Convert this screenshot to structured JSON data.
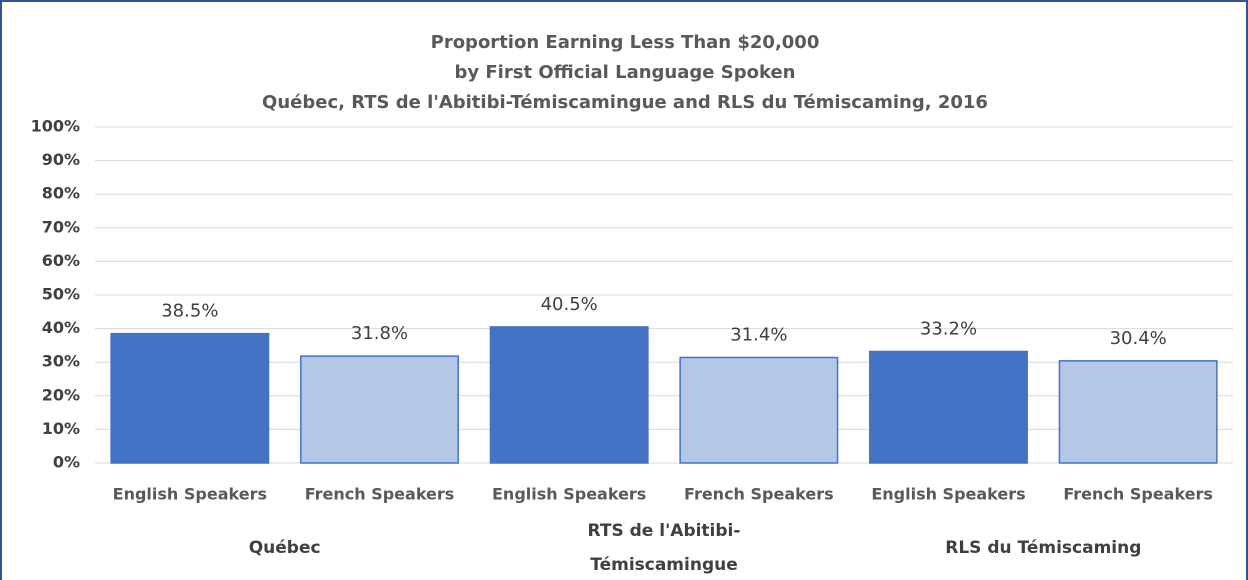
{
  "chart_data": {
    "type": "bar",
    "title": [
      "Proportion Earning Less Than $20,000",
      "by First Official Language Spoken",
      "Québec, RTS de l'Abitibi-Témiscamingue and RLS du Témiscaming, 2016"
    ],
    "categories": [
      "English Speakers",
      "French Speakers",
      "English Speakers",
      "French Speakers",
      "English Speakers",
      "French Speakers"
    ],
    "groups": [
      "Québec",
      "RTS de l'Abitibi-Témiscamingue",
      "RLS du Témiscaming"
    ],
    "values": [
      38.5,
      31.8,
      40.5,
      31.4,
      33.2,
      30.4
    ],
    "value_labels": [
      "38.5%",
      "31.8%",
      "40.5%",
      "31.4%",
      "33.2%",
      "30.4%"
    ],
    "colors": [
      "#4472c4",
      "#b4c7e7",
      "#4472c4",
      "#b4c7e7",
      "#4472c4",
      "#b4c7e7"
    ],
    "edgecolor": "#4472c4",
    "ylim": [
      0,
      100
    ],
    "yticks": [
      {
        "value": 0,
        "label": "0%"
      },
      {
        "value": 10,
        "label": "10%"
      },
      {
        "value": 20,
        "label": "20%"
      },
      {
        "value": 30,
        "label": "30%"
      },
      {
        "value": 40,
        "label": "40%"
      },
      {
        "value": 50,
        "label": "50%"
      },
      {
        "value": 60,
        "label": "60%"
      },
      {
        "value": 70,
        "label": "70%"
      },
      {
        "value": 80,
        "label": "80%"
      },
      {
        "value": 90,
        "label": "90%"
      },
      {
        "value": 100,
        "label": "100%"
      }
    ],
    "grid": true
  }
}
